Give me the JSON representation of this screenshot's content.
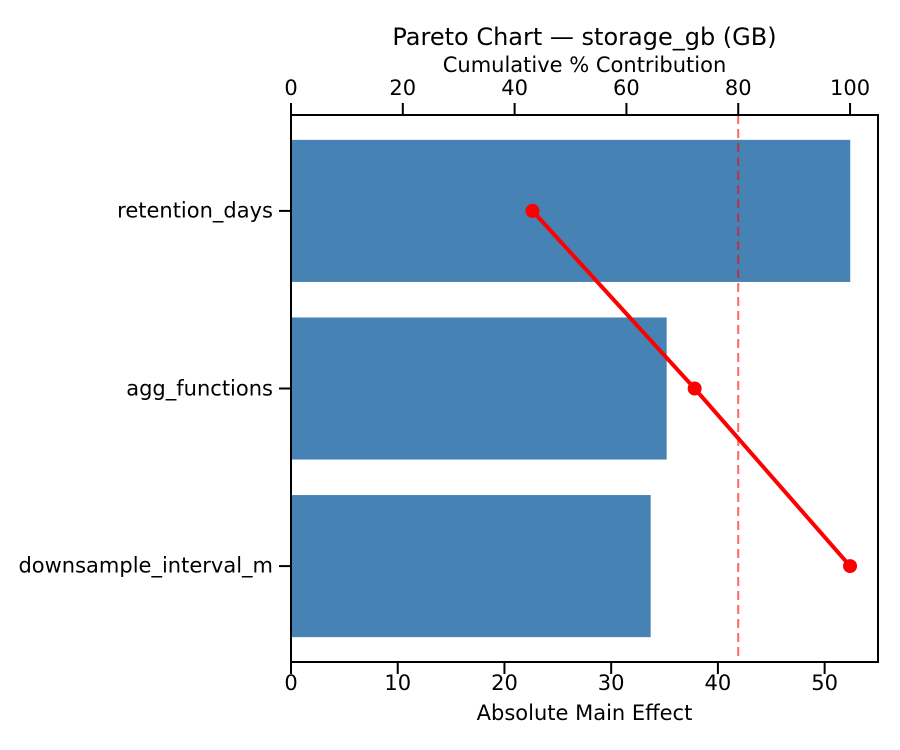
{
  "chart_data": {
    "type": "bar",
    "subtype": "pareto",
    "orientation": "horizontal",
    "title": "Pareto Chart — storage_gb (GB)",
    "xlabel": "Absolute Main Effect",
    "top_axis_label": "Cumulative % Contribution",
    "categories": [
      "retention_days",
      "agg_functions",
      "downsample_interval_m"
    ],
    "series": [
      {
        "name": "Absolute Main Effect",
        "type": "bar",
        "values": [
          52.4,
          35.2,
          33.7
        ]
      },
      {
        "name": "Cumulative % Contribution",
        "type": "line",
        "values": [
          43.2,
          72.2,
          100.0
        ]
      }
    ],
    "x_bottom": {
      "ticks": [
        0,
        10,
        20,
        30,
        40,
        50
      ],
      "range": [
        0,
        55
      ]
    },
    "x_top": {
      "ticks": [
        0,
        20,
        40,
        60,
        80,
        100
      ],
      "range": [
        0,
        105
      ]
    },
    "threshold_pct": 80,
    "grid": false,
    "legend": "none",
    "colors": {
      "bar": "#4682B4",
      "line": "#FF0000",
      "threshold": "rgba(255,0,0,0.6)",
      "text": "#000000",
      "spine": "#000000",
      "background": "#FFFFFF"
    }
  }
}
